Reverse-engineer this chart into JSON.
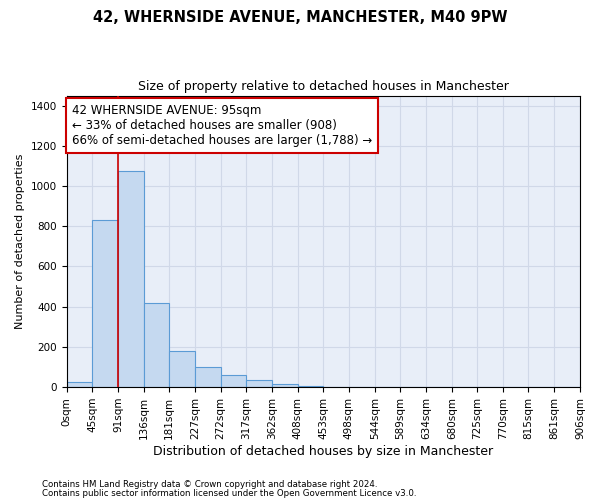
{
  "title": "42, WHERNSIDE AVENUE, MANCHESTER, M40 9PW",
  "subtitle": "Size of property relative to detached houses in Manchester",
  "xlabel": "Distribution of detached houses by size in Manchester",
  "ylabel": "Number of detached properties",
  "footnote1": "Contains HM Land Registry data © Crown copyright and database right 2024.",
  "footnote2": "Contains public sector information licensed under the Open Government Licence v3.0.",
  "bin_labels": [
    "0sqm",
    "45sqm",
    "91sqm",
    "136sqm",
    "181sqm",
    "227sqm",
    "272sqm",
    "317sqm",
    "362sqm",
    "408sqm",
    "453sqm",
    "498sqm",
    "544sqm",
    "589sqm",
    "634sqm",
    "680sqm",
    "725sqm",
    "770sqm",
    "815sqm",
    "861sqm",
    "906sqm"
  ],
  "bin_edges": [
    0,
    45,
    91,
    136,
    181,
    227,
    272,
    317,
    362,
    408,
    453,
    498,
    544,
    589,
    634,
    680,
    725,
    770,
    815,
    861,
    906
  ],
  "bar_heights": [
    25,
    830,
    1075,
    420,
    180,
    100,
    58,
    35,
    15,
    5,
    2,
    1,
    0,
    0,
    0,
    0,
    0,
    0,
    0,
    0
  ],
  "bar_color": "#c5d9f0",
  "bar_edgecolor": "#5b9bd5",
  "bar_linewidth": 0.8,
  "vline_x": 91,
  "vline_color": "#cc0000",
  "annotation_text": "42 WHERNSIDE AVENUE: 95sqm\n← 33% of detached houses are smaller (908)\n66% of semi-detached houses are larger (1,788) →",
  "annotation_box_color": "#ffffff",
  "annotation_box_edgecolor": "#cc0000",
  "ylim": [
    0,
    1450
  ],
  "yticks": [
    0,
    200,
    400,
    600,
    800,
    1000,
    1200,
    1400
  ],
  "grid_color": "#d0d8e8",
  "plot_bg_color": "#e8eef8",
  "title_fontsize": 10.5,
  "subtitle_fontsize": 9,
  "xlabel_fontsize": 9,
  "ylabel_fontsize": 8,
  "tick_fontsize": 7.5,
  "annotation_fontsize": 8.5
}
